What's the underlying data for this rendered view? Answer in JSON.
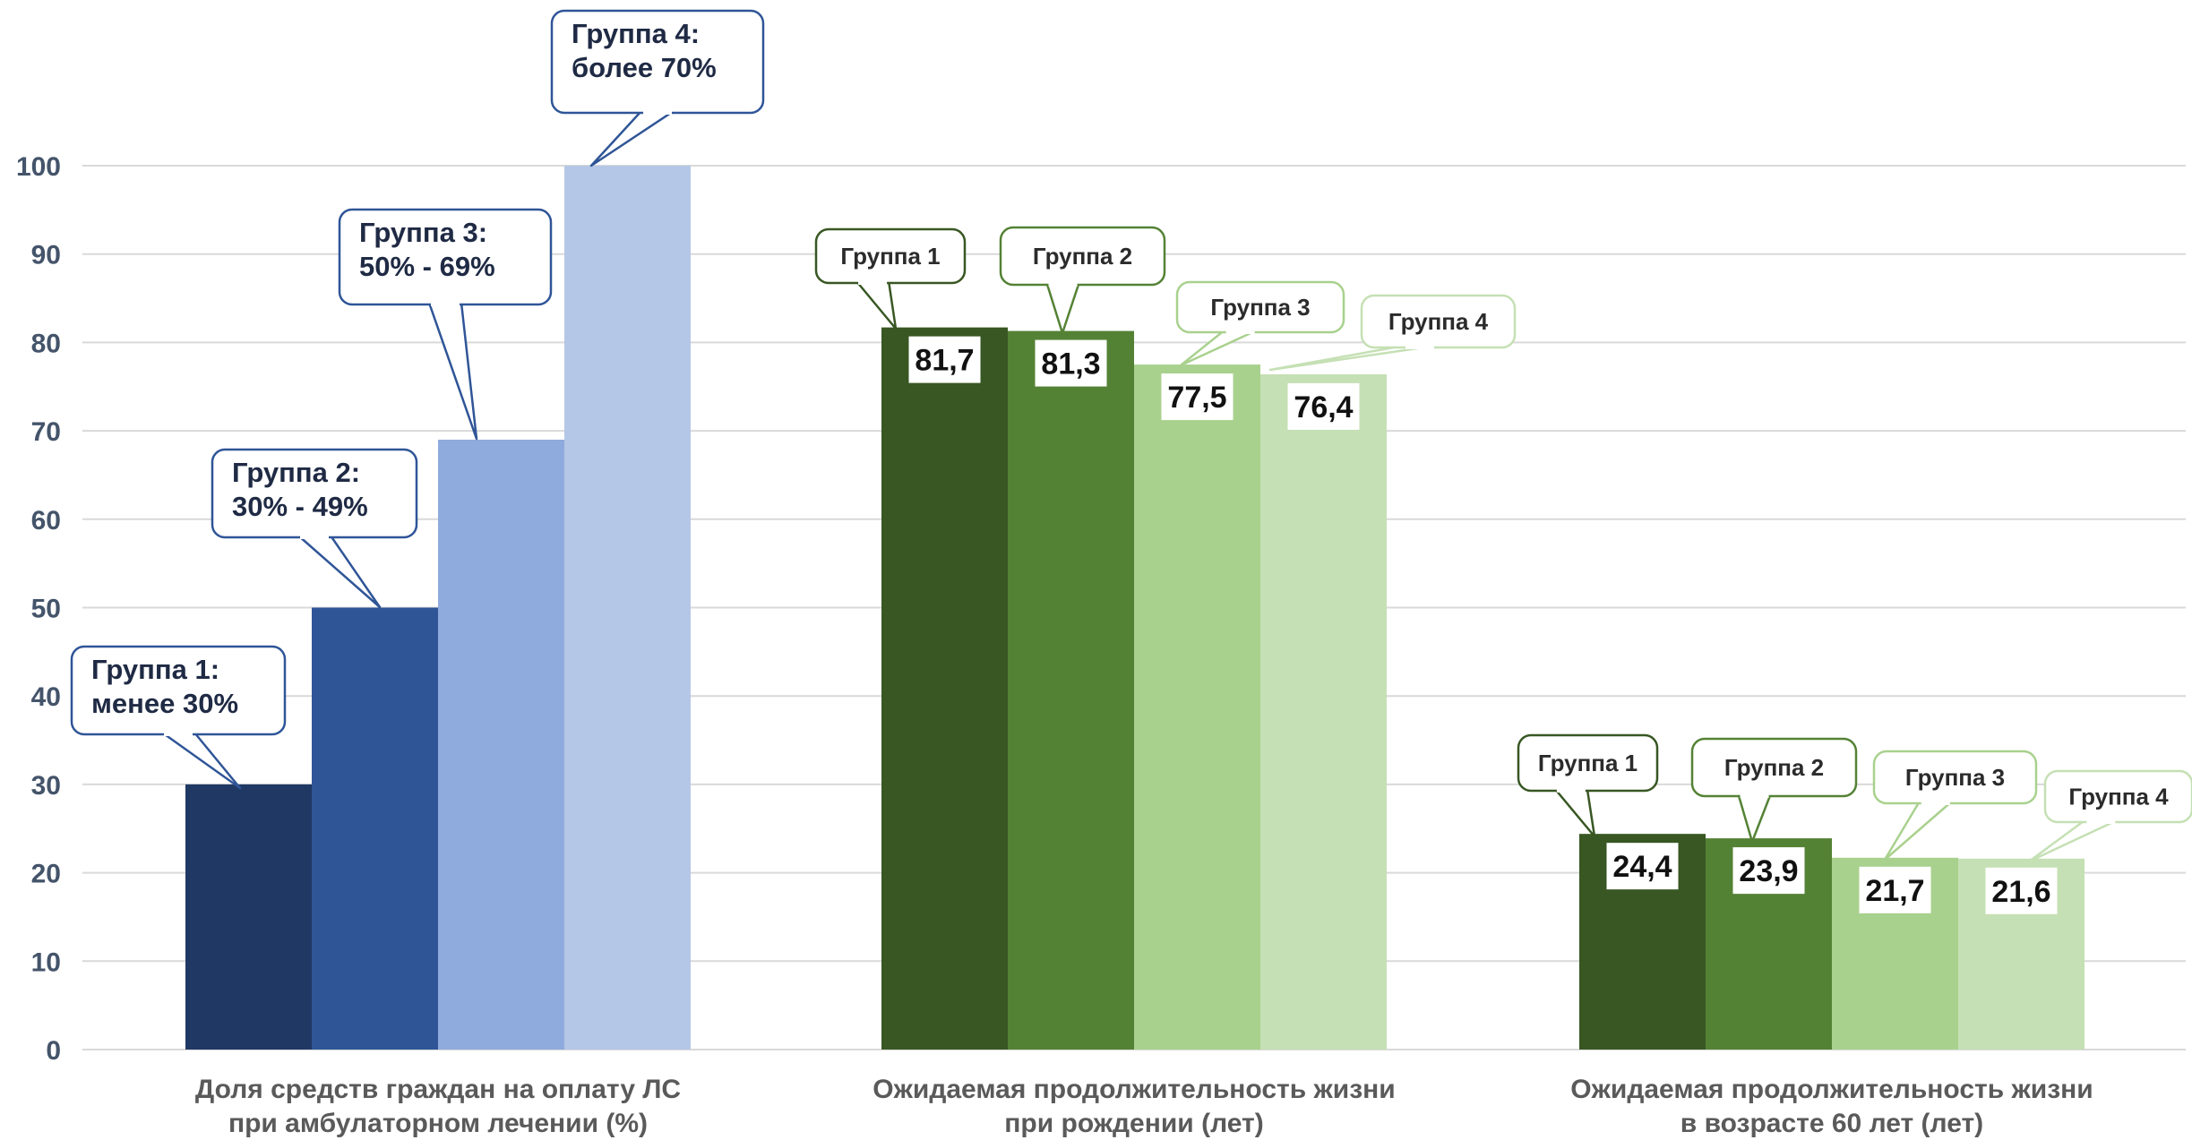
{
  "chart_data": {
    "type": "bar",
    "ylim": [
      0,
      100
    ],
    "yticks": [
      0,
      10,
      20,
      30,
      40,
      50,
      60,
      70,
      80,
      90,
      100
    ],
    "grid": true,
    "groups": [
      {
        "label_lines": [
          "Доля средств граждан на оплату ЛС",
          "при амбулаторном лечении (%)"
        ],
        "bars": [
          {
            "value": 30,
            "color": "#203864",
            "callout_lines": [
              "Группа 1:",
              "менее 30%"
            ]
          },
          {
            "value": 50,
            "color": "#2f5597",
            "callout_lines": [
              "Группа 2:",
              "30% - 49%"
            ]
          },
          {
            "value": 69,
            "color": "#8faadc",
            "callout_lines": [
              "Группа 3:",
              "50% - 69%"
            ]
          },
          {
            "value": 100,
            "color": "#b4c7e7",
            "callout_lines": [
              "Группа 4:",
              "более 70%"
            ]
          }
        ],
        "callout_style": "blue"
      },
      {
        "label_lines": [
          "Ожидаемая продолжительность жизни",
          "при рождении (лет)"
        ],
        "bars": [
          {
            "value": 81.7,
            "label": "81,7",
            "color": "#385723",
            "callout_lines": [
              "Группа  1"
            ]
          },
          {
            "value": 81.3,
            "label": "81,3",
            "color": "#548235",
            "callout_lines": [
              "Группа  2"
            ]
          },
          {
            "value": 77.5,
            "label": "77,5",
            "color": "#a9d18e",
            "callout_lines": [
              "Группа  3"
            ]
          },
          {
            "value": 76.4,
            "label": "76,4",
            "color": "#c5e0b4",
            "callout_lines": [
              "Группа  4"
            ]
          }
        ],
        "callout_style": "green"
      },
      {
        "label_lines": [
          "Ожидаемая продолжительность жизни",
          "в возрасте 60 лет (лет)"
        ],
        "bars": [
          {
            "value": 24.4,
            "label": "24,4",
            "color": "#385723",
            "callout_lines": [
              "Группа  1"
            ]
          },
          {
            "value": 23.9,
            "label": "23,9",
            "color": "#548235",
            "callout_lines": [
              "Группа  2"
            ]
          },
          {
            "value": 21.7,
            "label": "21,7",
            "color": "#a9d18e",
            "callout_lines": [
              "Группа  3"
            ]
          },
          {
            "value": 21.6,
            "label": "21,6",
            "color": "#c5e0b4",
            "callout_lines": [
              "Группа  4"
            ]
          }
        ],
        "callout_style": "green"
      }
    ]
  },
  "colors": {
    "grid": "#d9d9d9",
    "axis_text": "#44546a",
    "category_text": "#5a5a5a",
    "blue_callout_border": "#2f5597",
    "green_callout_borders": [
      "#385723",
      "#548235",
      "#a9d18e",
      "#c5e0b4"
    ]
  }
}
